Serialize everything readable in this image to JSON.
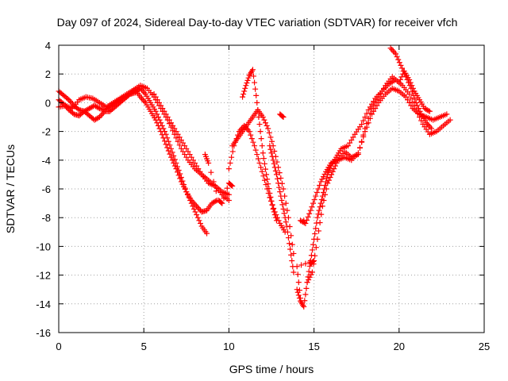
{
  "chart_data": {
    "type": "scatter",
    "title": "Day 097 of 2024, Sidereal Day-to-day VTEC variation (SDTVAR) for receiver vfch",
    "xlabel": "GPS time / hours",
    "ylabel": "SDTVAR / TECUs",
    "xlim": [
      0,
      25
    ],
    "ylim": [
      -16,
      4
    ],
    "xticks": [
      0,
      5,
      10,
      15,
      20,
      25
    ],
    "yticks": [
      4,
      2,
      0,
      -2,
      -4,
      -6,
      -8,
      -10,
      -12,
      -14,
      -16
    ],
    "grid": true,
    "marker": "+",
    "color": "#ff0000",
    "series": [
      {
        "x": [
          0.0,
          0.3,
          0.6,
          0.9,
          1.2,
          1.5,
          1.8,
          2.1,
          2.4,
          2.7,
          3.0,
          3.3,
          3.6,
          3.9,
          4.2,
          4.5,
          4.8,
          5.1,
          5.4,
          5.7,
          6.0,
          6.3,
          6.6,
          6.9,
          7.2,
          7.5,
          7.8,
          8.1,
          8.4,
          8.7
        ],
        "y": [
          0.8,
          0.5,
          0.2,
          -0.2,
          -0.5,
          -0.6,
          -0.4,
          -0.2,
          -0.4,
          -0.5,
          -0.3,
          0.0,
          0.2,
          0.4,
          0.6,
          0.7,
          1.0,
          0.6,
          0.0,
          -0.6,
          -1.4,
          -2.2,
          -3.2,
          -4.2,
          -5.2,
          -6.2,
          -7.0,
          -7.8,
          -8.6,
          -9.1
        ]
      },
      {
        "x": [
          0.0,
          0.3,
          0.6,
          0.9,
          1.2,
          1.5,
          1.8,
          2.1,
          2.4,
          2.7,
          3.0,
          3.3,
          3.6,
          3.9,
          4.2,
          4.5,
          4.8,
          5.1,
          5.4,
          5.7,
          6.0,
          6.3,
          6.6,
          6.9,
          7.2,
          7.5,
          7.8,
          8.1,
          8.4,
          8.7,
          9.0,
          9.3
        ],
        "y": [
          0.2,
          -0.1,
          -0.5,
          -0.8,
          -0.9,
          -0.6,
          -0.9,
          -1.2,
          -1.0,
          -0.6,
          -0.6,
          -0.3,
          0.0,
          0.3,
          0.6,
          0.9,
          0.4,
          0.0,
          -0.6,
          -1.2,
          -2.0,
          -2.9,
          -3.8,
          -4.6,
          -5.5,
          -6.2,
          -6.8,
          -7.2,
          -7.6,
          -7.5,
          -7.0,
          -6.8
        ]
      },
      {
        "x": [
          0.0,
          0.4,
          0.8,
          1.2,
          1.6,
          2.0,
          2.4,
          2.8,
          3.2,
          3.6,
          4.0,
          4.4,
          4.8,
          5.2,
          5.6,
          6.0,
          6.4,
          6.8,
          7.2,
          7.6,
          8.0,
          8.4,
          8.8,
          9.2,
          9.6,
          10.0
        ],
        "y": [
          -0.3,
          -0.2,
          -0.4,
          0.2,
          0.4,
          0.3,
          0.0,
          -0.3,
          0.0,
          0.3,
          0.6,
          0.9,
          1.2,
          1.0,
          0.4,
          -0.4,
          -1.2,
          -2.2,
          -3.2,
          -4.0,
          -4.6,
          -5.0,
          -5.4,
          -5.8,
          -6.4,
          -6.8
        ]
      },
      {
        "x": [
          5.6,
          6.0,
          6.4,
          6.8,
          7.2,
          7.6,
          8.0,
          8.4,
          8.8,
          9.2,
          9.6,
          10.0
        ],
        "y": [
          0.6,
          -0.2,
          -1.0,
          -1.8,
          -2.6,
          -3.4,
          -4.2,
          -5.0,
          -5.6,
          -5.8,
          -6.2,
          -6.4
        ]
      },
      {
        "x": [
          10.0,
          10.3,
          10.6,
          10.9,
          11.2,
          11.5,
          11.8,
          12.1,
          12.4,
          12.7,
          13.0,
          13.3
        ],
        "y": [
          -4.6,
          -3.0,
          -2.0,
          -1.6,
          -2.0,
          -3.0,
          -4.2,
          -5.4,
          -6.6,
          -7.6,
          -8.4,
          -9.0
        ]
      },
      {
        "x": [
          10.8,
          11.0,
          11.2,
          11.4,
          11.6,
          11.8,
          12.0,
          12.2,
          12.4,
          12.6,
          12.8
        ],
        "y": [
          0.4,
          1.2,
          1.9,
          2.3,
          0.5,
          -1.5,
          -3.5,
          -5.0,
          -6.3,
          -7.4,
          -8.2
        ]
      },
      {
        "x": [
          10.2,
          10.5,
          10.8,
          11.1,
          11.4,
          11.7,
          12.0,
          12.3,
          12.6,
          12.9,
          13.2,
          13.5,
          13.8
        ],
        "y": [
          -3.0,
          -2.5,
          -2.0,
          -1.5,
          -1.0,
          -0.5,
          -1.0,
          -1.8,
          -3.0,
          -4.5,
          -6.0,
          -8.0,
          -10.5
        ]
      },
      {
        "x": [
          12.4,
          12.6,
          12.8,
          13.0,
          13.2,
          13.4,
          13.6,
          13.8
        ],
        "y": [
          -3.0,
          -4.0,
          -5.0,
          -6.2,
          -7.4,
          -8.6,
          -10.2,
          -11.8
        ]
      },
      {
        "x": [
          14.0,
          14.2,
          14.4,
          14.6,
          14.8,
          15.0,
          15.2,
          15.4,
          15.6,
          15.8,
          16.0,
          16.3,
          16.6,
          17.0,
          17.4,
          17.8,
          18.2,
          18.6,
          19.0,
          19.4,
          19.8,
          20.2,
          20.6,
          21.0,
          21.4,
          21.8,
          22.2,
          22.6,
          23.0
        ],
        "y": [
          -13.0,
          -13.8,
          -14.2,
          -12.5,
          -11.0,
          -9.5,
          -8.0,
          -7.0,
          -6.0,
          -5.0,
          -4.4,
          -3.8,
          -3.2,
          -3.0,
          -2.2,
          -1.5,
          -0.5,
          0.3,
          0.8,
          1.3,
          1.6,
          1.2,
          0.6,
          -0.5,
          -1.5,
          -2.2,
          -2.0,
          -1.6,
          -1.2
        ]
      },
      {
        "x": [
          14.2,
          14.5,
          14.8,
          15.1,
          15.4,
          15.7,
          16.0,
          16.4,
          16.8,
          17.2,
          17.6,
          18.0,
          18.4,
          18.8,
          19.2,
          19.6,
          20.0,
          20.4,
          20.8,
          21.2,
          21.6,
          22.0,
          22.4,
          22.8
        ],
        "y": [
          -8.2,
          -8.4,
          -7.5,
          -6.5,
          -5.5,
          -4.8,
          -4.2,
          -4.0,
          -3.8,
          -4.0,
          -3.5,
          -2.0,
          -0.8,
          0.0,
          0.6,
          1.0,
          0.8,
          0.4,
          -0.4,
          -0.8,
          -1.0,
          -1.2,
          -1.0,
          -0.8
        ]
      },
      {
        "x": [
          14.6,
          14.9,
          15.2,
          15.5,
          15.8,
          16.1,
          16.4,
          16.8,
          17.2,
          17.6,
          18.0,
          18.4,
          18.8,
          19.2,
          19.6,
          20.0,
          20.3,
          20.6,
          20.9,
          21.2,
          21.5,
          21.8
        ],
        "y": [
          -12.5,
          -11.8,
          -9.5,
          -7.2,
          -5.6,
          -4.8,
          -4.0,
          -3.4,
          -3.8,
          -3.6,
          -1.8,
          -0.4,
          0.4,
          1.2,
          1.8,
          1.4,
          2.2,
          1.6,
          0.8,
          0.2,
          -0.4,
          -0.6
        ]
      },
      {
        "x": [
          19.5,
          19.8,
          20.1,
          20.4,
          20.7,
          21.0,
          21.3,
          21.6,
          21.9
        ],
        "y": [
          3.8,
          3.4,
          2.6,
          1.8,
          1.0,
          0.0,
          -0.8,
          -1.4,
          -1.8
        ]
      },
      {
        "x": [
          8.6,
          8.8,
          9.4,
          9.6,
          10.0,
          10.2,
          13.0,
          13.2,
          14.4,
          14.8,
          15.0,
          14.0,
          14.2
        ],
        "y": [
          -3.6,
          -4.2,
          -6.8,
          -7.0,
          -5.6,
          -5.8,
          -0.8,
          -1.0,
          -8.2,
          -11.2,
          -11.0,
          -11.4,
          -13.6
        ]
      }
    ]
  }
}
